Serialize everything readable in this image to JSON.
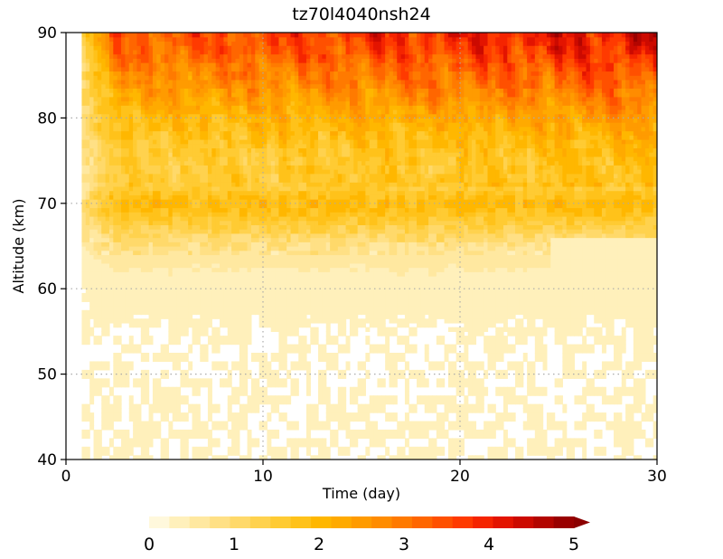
{
  "chart_data": {
    "type": "heatmap",
    "title": "tz70l4040nsh24",
    "xlabel": "Time  (day)",
    "ylabel": "Altitude  (km)",
    "xlim": [
      0,
      30
    ],
    "ylim": [
      40,
      90
    ],
    "xticks": [
      "0",
      "10",
      "20",
      "30"
    ],
    "yticks": [
      "40",
      "50",
      "60",
      "70",
      "80",
      "90"
    ],
    "grid": true,
    "colorbar": {
      "position": "bottom",
      "range": [
        0,
        5
      ],
      "ticks": [
        "0",
        "1",
        "2",
        "3",
        "4",
        "5"
      ],
      "extend": "max",
      "colors": [
        "#fff8dc",
        "#fff0bb",
        "#ffe8a0",
        "#ffe085",
        "#ffd96a",
        "#ffd24e",
        "#ffcb33",
        "#ffc21a",
        "#ffb700",
        "#ffaa00",
        "#ff9b00",
        "#ff8c00",
        "#ff7a00",
        "#ff6600",
        "#ff5000",
        "#ff3a00",
        "#f52400",
        "#e31400",
        "#cc0a00",
        "#b30500",
        "#990000"
      ]
    },
    "series": [
      {
        "name": "",
        "altitude_km": [
          40,
          45,
          50,
          55,
          60,
          63,
          65,
          67,
          69,
          70,
          71,
          72,
          74,
          76,
          78,
          80,
          82,
          84,
          86,
          88,
          90
        ],
        "profile_day_10": [
          0,
          0,
          0,
          0,
          0.1,
          0.3,
          0.6,
          1.1,
          1.6,
          1.8,
          1.6,
          1.3,
          1.2,
          1.3,
          1.5,
          1.7,
          2.0,
          2.3,
          2.6,
          2.9,
          3.1
        ]
      }
    ]
  }
}
